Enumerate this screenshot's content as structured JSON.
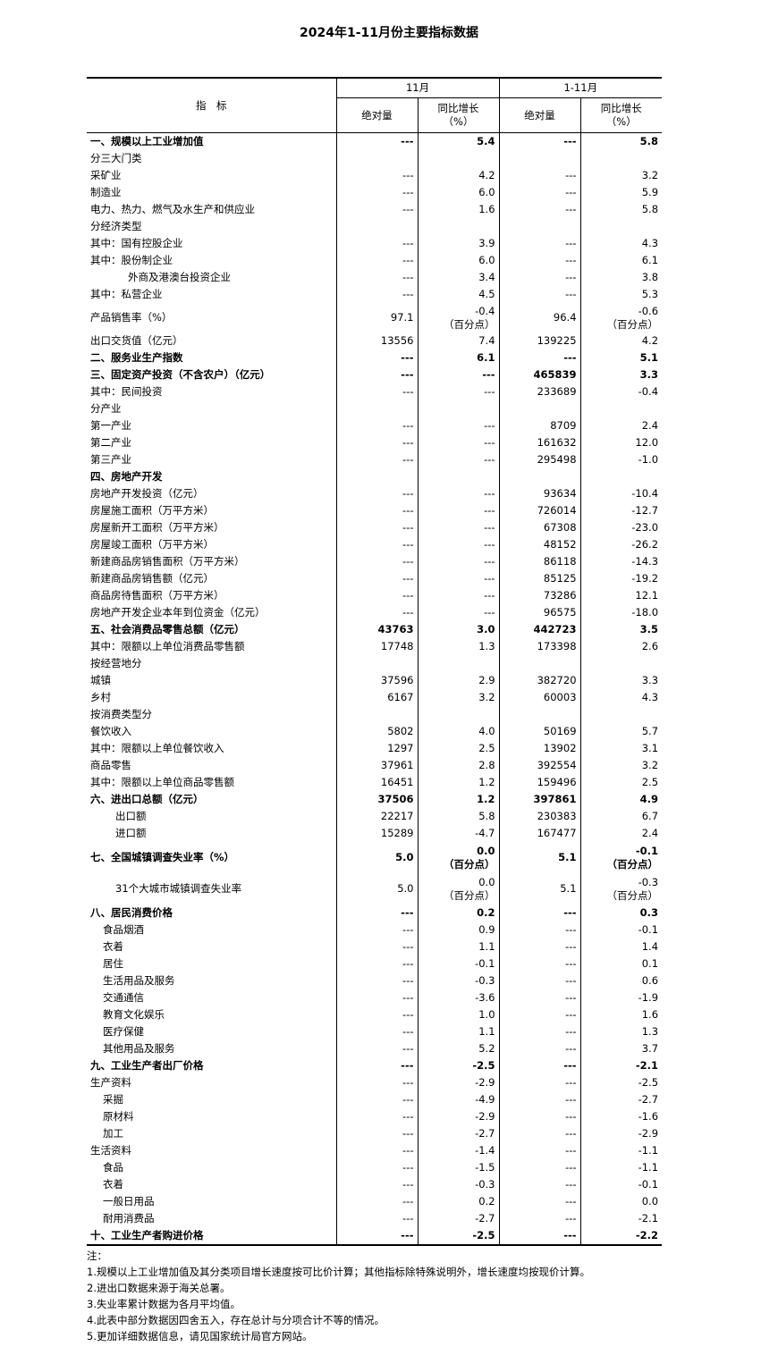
{
  "title": "2024年1-11月份主要指标数据",
  "header": {
    "indicator": "指　标",
    "group1": "11月",
    "group2": "1-11月",
    "abs": "绝对量",
    "yoy": "同比增长\n（%）"
  },
  "rows": [
    {
      "label": "一、规模以上工业增加值",
      "indent": 0,
      "bold": true,
      "v": [
        "---",
        "5.4",
        "---",
        "5.8"
      ]
    },
    {
      "label": "分三大门类",
      "indent": 0,
      "v": [
        "",
        "",
        "",
        ""
      ]
    },
    {
      "label": "采矿业",
      "indent": 0,
      "v": [
        "---",
        "4.2",
        "---",
        "3.2"
      ]
    },
    {
      "label": "制造业",
      "indent": 0,
      "v": [
        "---",
        "6.0",
        "---",
        "5.9"
      ]
    },
    {
      "label": "电力、热力、燃气及水生产和供应业",
      "indent": 0,
      "v": [
        "---",
        "1.6",
        "---",
        "5.8"
      ]
    },
    {
      "label": "分经济类型",
      "indent": 0,
      "v": [
        "",
        "",
        "",
        ""
      ]
    },
    {
      "label": "其中：国有控股企业",
      "indent": 0,
      "v": [
        "---",
        "3.9",
        "---",
        "4.3"
      ]
    },
    {
      "label": "其中：股份制企业",
      "indent": 0,
      "v": [
        "---",
        "6.0",
        "---",
        "6.1"
      ]
    },
    {
      "label": "外商及港澳台投资企业",
      "indent": 3,
      "v": [
        "---",
        "3.4",
        "---",
        "3.8"
      ]
    },
    {
      "label": "其中：私营企业",
      "indent": 0,
      "v": [
        "---",
        "4.5",
        "---",
        "5.3"
      ]
    },
    {
      "label": "产品销售率（%）",
      "indent": 0,
      "double": 1,
      "v": [
        "97.1",
        "-0.4\n（百分点）",
        "96.4",
        "-0.6\n（百分点）"
      ]
    },
    {
      "label": "出口交货值（亿元）",
      "indent": 0,
      "v": [
        "13556",
        "7.4",
        "139225",
        "4.2"
      ]
    },
    {
      "label": "二、服务业生产指数",
      "indent": 0,
      "bold": true,
      "v": [
        "---",
        "6.1",
        "---",
        "5.1"
      ]
    },
    {
      "label": "三、固定资产投资（不含农户）（亿元）",
      "indent": 0,
      "bold": true,
      "v": [
        "---",
        "---",
        "465839",
        "3.3"
      ]
    },
    {
      "label": "其中：民间投资",
      "indent": 0,
      "v": [
        "---",
        "---",
        "233689",
        "-0.4"
      ]
    },
    {
      "label": "分产业",
      "indent": 0,
      "v": [
        "",
        "",
        "",
        ""
      ]
    },
    {
      "label": "第一产业",
      "indent": 0,
      "v": [
        "---",
        "---",
        "8709",
        "2.4"
      ]
    },
    {
      "label": "第二产业",
      "indent": 0,
      "v": [
        "---",
        "---",
        "161632",
        "12.0"
      ]
    },
    {
      "label": "第三产业",
      "indent": 0,
      "v": [
        "---",
        "---",
        "295498",
        "-1.0"
      ]
    },
    {
      "label": "四、房地产开发",
      "indent": 0,
      "bold": true,
      "v": [
        "",
        "",
        "",
        ""
      ]
    },
    {
      "label": "房地产开发投资（亿元）",
      "indent": 0,
      "v": [
        "---",
        "---",
        "93634",
        "-10.4"
      ]
    },
    {
      "label": "房屋施工面积（万平方米）",
      "indent": 0,
      "v": [
        "---",
        "---",
        "726014",
        "-12.7"
      ]
    },
    {
      "label": "房屋新开工面积（万平方米）",
      "indent": 0,
      "v": [
        "---",
        "---",
        "67308",
        "-23.0"
      ]
    },
    {
      "label": "房屋竣工面积（万平方米）",
      "indent": 0,
      "v": [
        "---",
        "---",
        "48152",
        "-26.2"
      ]
    },
    {
      "label": "新建商品房销售面积（万平方米）",
      "indent": 0,
      "v": [
        "---",
        "---",
        "86118",
        "-14.3"
      ]
    },
    {
      "label": "新建商品房销售额（亿元）",
      "indent": 0,
      "v": [
        "---",
        "---",
        "85125",
        "-19.2"
      ]
    },
    {
      "label": "商品房待售面积（万平方米）",
      "indent": 0,
      "v": [
        "---",
        "---",
        "73286",
        "12.1"
      ]
    },
    {
      "label": "房地产开发企业本年到位资金（亿元）",
      "indent": 0,
      "v": [
        "---",
        "---",
        "96575",
        "-18.0"
      ]
    },
    {
      "label": "五、社会消费品零售总额（亿元）",
      "indent": 0,
      "bold": true,
      "v": [
        "43763",
        "3.0",
        "442723",
        "3.5"
      ]
    },
    {
      "label": "其中：限额以上单位消费品零售额",
      "indent": 0,
      "v": [
        "17748",
        "1.3",
        "173398",
        "2.6"
      ]
    },
    {
      "label": "按经营地分",
      "indent": 0,
      "v": [
        "",
        "",
        "",
        ""
      ]
    },
    {
      "label": "城镇",
      "indent": 0,
      "v": [
        "37596",
        "2.9",
        "382720",
        "3.3"
      ]
    },
    {
      "label": "乡村",
      "indent": 0,
      "v": [
        "6167",
        "3.2",
        "60003",
        "4.3"
      ]
    },
    {
      "label": "按消费类型分",
      "indent": 0,
      "v": [
        "",
        "",
        "",
        ""
      ]
    },
    {
      "label": "餐饮收入",
      "indent": 0,
      "v": [
        "5802",
        "4.0",
        "50169",
        "5.7"
      ]
    },
    {
      "label": "其中：限额以上单位餐饮收入",
      "indent": 0,
      "v": [
        "1297",
        "2.5",
        "13902",
        "3.1"
      ]
    },
    {
      "label": "商品零售",
      "indent": 0,
      "v": [
        "37961",
        "2.8",
        "392554",
        "3.2"
      ]
    },
    {
      "label": "其中：限额以上单位商品零售额",
      "indent": 0,
      "v": [
        "16451",
        "1.2",
        "159496",
        "2.5"
      ]
    },
    {
      "label": "六、进出口总额（亿元）",
      "indent": 0,
      "bold": true,
      "v": [
        "37506",
        "1.2",
        "397861",
        "4.9"
      ]
    },
    {
      "label": "出口额",
      "indent": 2,
      "v": [
        "22217",
        "5.8",
        "230383",
        "6.7"
      ]
    },
    {
      "label": "进口额",
      "indent": 2,
      "v": [
        "15289",
        "-4.7",
        "167477",
        "2.4"
      ]
    },
    {
      "label": "七、全国城镇调查失业率（%）",
      "indent": 0,
      "bold": true,
      "double": 2,
      "v": [
        "5.0",
        "0.0\n（百分点）",
        "5.1",
        "-0.1\n（百分点）"
      ]
    },
    {
      "label": "31个大城市城镇调查失业率",
      "indent": 2,
      "double": 2,
      "v": [
        "5.0",
        "0.0\n（百分点）",
        "5.1",
        "-0.3\n（百分点）"
      ]
    },
    {
      "label": "八、居民消费价格",
      "indent": 0,
      "bold": true,
      "v": [
        "---",
        "0.2",
        "---",
        "0.3"
      ]
    },
    {
      "label": "食品烟酒",
      "indent": 1,
      "v": [
        "---",
        "0.9",
        "---",
        "-0.1"
      ]
    },
    {
      "label": "衣着",
      "indent": 1,
      "v": [
        "---",
        "1.1",
        "---",
        "1.4"
      ]
    },
    {
      "label": "居住",
      "indent": 1,
      "v": [
        "---",
        "-0.1",
        "---",
        "0.1"
      ]
    },
    {
      "label": "生活用品及服务",
      "indent": 1,
      "v": [
        "---",
        "-0.3",
        "---",
        "0.6"
      ]
    },
    {
      "label": "交通通信",
      "indent": 1,
      "v": [
        "---",
        "-3.6",
        "---",
        "-1.9"
      ]
    },
    {
      "label": "教育文化娱乐",
      "indent": 1,
      "v": [
        "---",
        "1.0",
        "---",
        "1.6"
      ]
    },
    {
      "label": "医疗保健",
      "indent": 1,
      "v": [
        "---",
        "1.1",
        "---",
        "1.3"
      ]
    },
    {
      "label": "其他用品及服务",
      "indent": 1,
      "v": [
        "---",
        "5.2",
        "---",
        "3.7"
      ]
    },
    {
      "label": "九、工业生产者出厂价格",
      "indent": 0,
      "bold": true,
      "v": [
        "---",
        "-2.5",
        "---",
        "-2.1"
      ]
    },
    {
      "label": "生产资料",
      "indent": 0,
      "v": [
        "---",
        "-2.9",
        "---",
        "-2.5"
      ]
    },
    {
      "label": "采掘",
      "indent": 1,
      "v": [
        "---",
        "-4.9",
        "---",
        "-2.7"
      ]
    },
    {
      "label": "原材料",
      "indent": 1,
      "v": [
        "---",
        "-2.9",
        "---",
        "-1.6"
      ]
    },
    {
      "label": "加工",
      "indent": 1,
      "v": [
        "---",
        "-2.7",
        "---",
        "-2.9"
      ]
    },
    {
      "label": "生活资料",
      "indent": 0,
      "v": [
        "---",
        "-1.4",
        "---",
        "-1.1"
      ]
    },
    {
      "label": "食品",
      "indent": 1,
      "v": [
        "---",
        "-1.5",
        "---",
        "-1.1"
      ]
    },
    {
      "label": "衣着",
      "indent": 1,
      "v": [
        "---",
        "-0.3",
        "---",
        "-0.1"
      ]
    },
    {
      "label": "一般日用品",
      "indent": 1,
      "v": [
        "---",
        "0.2",
        "---",
        "0.0"
      ]
    },
    {
      "label": "耐用消费品",
      "indent": 1,
      "v": [
        "---",
        "-2.7",
        "---",
        "-2.1"
      ]
    },
    {
      "label": "十、工业生产者购进价格",
      "indent": 0,
      "bold": true,
      "v": [
        "---",
        "-2.5",
        "---",
        "-2.2"
      ]
    }
  ],
  "notes": {
    "heading": "注：",
    "items": [
      "1.规模以上工业增加值及其分类项目增长速度按可比价计算；其他指标除特殊说明外，增长速度均按现价计算。",
      "2.进出口数据来源于海关总署。",
      "3.失业率累计数据为各月平均值。",
      "4.此表中部分数据因四舍五入，存在总计与分项合计不等的情况。",
      "5.更加详细数据信息，请见国家统计局官方网站。"
    ]
  }
}
